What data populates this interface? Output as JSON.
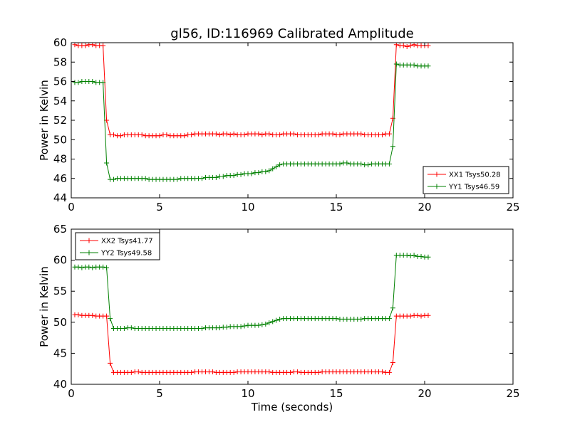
{
  "figure": {
    "title": "gl56, ID:116969 Calibrated Amplitude"
  },
  "chart_data": [
    {
      "type": "line",
      "title": "gl56, ID:116969 Calibrated Amplitude",
      "xlabel": "",
      "ylabel": "Power in Kelvin",
      "xlim": [
        0,
        25
      ],
      "ylim": [
        44,
        60
      ],
      "xticks": [
        0,
        5,
        10,
        15,
        20,
        25
      ],
      "yticks": [
        44,
        46,
        48,
        50,
        52,
        54,
        56,
        58,
        60
      ],
      "legend_position": "lower-right",
      "grid": false,
      "series": [
        {
          "name": "XX1 Tsys50.28",
          "color": "#ff0000",
          "marker": "plus",
          "x": [
            0.2,
            0.4,
            0.6,
            0.8,
            1.0,
            1.2,
            1.4,
            1.6,
            1.8,
            2.0,
            2.2,
            2.4,
            2.6,
            2.8,
            3.0,
            3.2,
            3.4,
            3.6,
            3.8,
            4.0,
            4.2,
            4.4,
            4.6,
            4.8,
            5.0,
            5.2,
            5.4,
            5.6,
            5.8,
            6.0,
            6.2,
            6.4,
            6.6,
            6.8,
            7.0,
            7.2,
            7.4,
            7.6,
            7.8,
            8.0,
            8.2,
            8.4,
            8.6,
            8.8,
            9.0,
            9.2,
            9.4,
            9.6,
            9.8,
            10.0,
            10.2,
            10.4,
            10.6,
            10.8,
            11.0,
            11.2,
            11.4,
            11.6,
            11.8,
            12.0,
            12.2,
            12.4,
            12.6,
            12.8,
            13.0,
            13.2,
            13.4,
            13.6,
            13.8,
            14.0,
            14.2,
            14.4,
            14.6,
            14.8,
            15.0,
            15.2,
            15.4,
            15.6,
            15.8,
            16.0,
            16.2,
            16.4,
            16.6,
            16.8,
            17.0,
            17.2,
            17.4,
            17.6,
            17.8,
            18.0,
            18.2,
            18.4,
            18.6,
            18.8,
            19.0,
            19.2,
            19.4,
            19.6,
            19.8,
            20.0,
            20.2
          ],
          "y": [
            59.8,
            59.7,
            59.7,
            59.7,
            59.8,
            59.8,
            59.7,
            59.7,
            59.7,
            52.0,
            50.5,
            50.5,
            50.4,
            50.4,
            50.5,
            50.5,
            50.5,
            50.5,
            50.5,
            50.5,
            50.4,
            50.4,
            50.4,
            50.4,
            50.4,
            50.5,
            50.5,
            50.4,
            50.4,
            50.4,
            50.4,
            50.4,
            50.5,
            50.5,
            50.6,
            50.6,
            50.6,
            50.6,
            50.6,
            50.6,
            50.6,
            50.5,
            50.6,
            50.6,
            50.5,
            50.6,
            50.5,
            50.5,
            50.5,
            50.6,
            50.6,
            50.6,
            50.6,
            50.5,
            50.6,
            50.6,
            50.5,
            50.5,
            50.5,
            50.6,
            50.6,
            50.6,
            50.6,
            50.5,
            50.5,
            50.5,
            50.5,
            50.5,
            50.5,
            50.5,
            50.6,
            50.6,
            50.6,
            50.6,
            50.5,
            50.5,
            50.6,
            50.6,
            50.6,
            50.6,
            50.6,
            50.6,
            50.5,
            50.5,
            50.5,
            50.5,
            50.5,
            50.5,
            50.6,
            50.6,
            52.2,
            59.8,
            59.7,
            59.7,
            59.6,
            59.7,
            59.8,
            59.7,
            59.7,
            59.7,
            59.7
          ]
        },
        {
          "name": "YY1 Tsys46.59",
          "color": "#008000",
          "marker": "plus",
          "x": [
            0.2,
            0.4,
            0.6,
            0.8,
            1.0,
            1.2,
            1.4,
            1.6,
            1.8,
            2.0,
            2.2,
            2.4,
            2.6,
            2.8,
            3.0,
            3.2,
            3.4,
            3.6,
            3.8,
            4.0,
            4.2,
            4.4,
            4.6,
            4.8,
            5.0,
            5.2,
            5.4,
            5.6,
            5.8,
            6.0,
            6.2,
            6.4,
            6.6,
            6.8,
            7.0,
            7.2,
            7.4,
            7.6,
            7.8,
            8.0,
            8.2,
            8.4,
            8.6,
            8.8,
            9.0,
            9.2,
            9.4,
            9.6,
            9.8,
            10.0,
            10.2,
            10.4,
            10.6,
            10.8,
            11.0,
            11.2,
            11.4,
            11.6,
            11.8,
            12.0,
            12.2,
            12.4,
            12.6,
            12.8,
            13.0,
            13.2,
            13.4,
            13.6,
            13.8,
            14.0,
            14.2,
            14.4,
            14.6,
            14.8,
            15.0,
            15.2,
            15.4,
            15.6,
            15.8,
            16.0,
            16.2,
            16.4,
            16.6,
            16.8,
            17.0,
            17.2,
            17.4,
            17.6,
            17.8,
            18.0,
            18.2,
            18.4,
            18.6,
            18.8,
            19.0,
            19.2,
            19.4,
            19.6,
            19.8,
            20.0,
            20.2
          ],
          "y": [
            55.9,
            55.9,
            56.0,
            56.0,
            56.0,
            56.0,
            55.9,
            55.9,
            55.9,
            47.6,
            45.9,
            45.9,
            46.0,
            46.0,
            46.0,
            46.0,
            46.0,
            46.0,
            46.0,
            46.0,
            46.0,
            45.9,
            45.9,
            45.9,
            45.9,
            45.9,
            45.9,
            45.9,
            45.9,
            45.9,
            46.0,
            46.0,
            46.0,
            46.0,
            46.0,
            46.0,
            46.0,
            46.1,
            46.1,
            46.1,
            46.1,
            46.2,
            46.2,
            46.3,
            46.3,
            46.3,
            46.4,
            46.4,
            46.5,
            46.5,
            46.5,
            46.6,
            46.6,
            46.7,
            46.7,
            46.8,
            47.0,
            47.2,
            47.4,
            47.5,
            47.5,
            47.5,
            47.5,
            47.5,
            47.5,
            47.5,
            47.5,
            47.5,
            47.5,
            47.5,
            47.5,
            47.5,
            47.5,
            47.5,
            47.5,
            47.5,
            47.6,
            47.6,
            47.5,
            47.5,
            47.5,
            47.5,
            47.4,
            47.4,
            47.5,
            47.5,
            47.5,
            47.5,
            47.5,
            47.5,
            49.3,
            57.8,
            57.7,
            57.7,
            57.7,
            57.7,
            57.7,
            57.6,
            57.6,
            57.6,
            57.6
          ]
        }
      ]
    },
    {
      "type": "line",
      "title": "",
      "xlabel": "Time (seconds)",
      "ylabel": "Power in Kelvin",
      "xlim": [
        0,
        25
      ],
      "ylim": [
        40,
        65
      ],
      "xticks": [
        0,
        5,
        10,
        15,
        20,
        25
      ],
      "yticks": [
        40,
        45,
        50,
        55,
        60,
        65
      ],
      "legend_position": "upper-left",
      "grid": false,
      "series": [
        {
          "name": "XX2 Tsys41.77",
          "color": "#ff0000",
          "marker": "plus",
          "x": [
            0.2,
            0.4,
            0.6,
            0.8,
            1.0,
            1.2,
            1.4,
            1.6,
            1.8,
            2.0,
            2.2,
            2.4,
            2.6,
            2.8,
            3.0,
            3.2,
            3.4,
            3.6,
            3.8,
            4.0,
            4.2,
            4.4,
            4.6,
            4.8,
            5.0,
            5.2,
            5.4,
            5.6,
            5.8,
            6.0,
            6.2,
            6.4,
            6.6,
            6.8,
            7.0,
            7.2,
            7.4,
            7.6,
            7.8,
            8.0,
            8.2,
            8.4,
            8.6,
            8.8,
            9.0,
            9.2,
            9.4,
            9.6,
            9.8,
            10.0,
            10.2,
            10.4,
            10.6,
            10.8,
            11.0,
            11.2,
            11.4,
            11.6,
            11.8,
            12.0,
            12.2,
            12.4,
            12.6,
            12.8,
            13.0,
            13.2,
            13.4,
            13.6,
            13.8,
            14.0,
            14.2,
            14.4,
            14.6,
            14.8,
            15.0,
            15.2,
            15.4,
            15.6,
            15.8,
            16.0,
            16.2,
            16.4,
            16.6,
            16.8,
            17.0,
            17.2,
            17.4,
            17.6,
            17.8,
            18.0,
            18.2,
            18.4,
            18.6,
            18.8,
            19.0,
            19.2,
            19.4,
            19.6,
            19.8,
            20.0,
            20.2
          ],
          "y": [
            51.2,
            51.2,
            51.1,
            51.1,
            51.1,
            51.1,
            51.0,
            51.0,
            51.0,
            51.0,
            43.4,
            41.9,
            41.9,
            41.9,
            41.9,
            41.9,
            41.9,
            42.0,
            42.0,
            41.9,
            41.9,
            41.9,
            41.9,
            41.9,
            41.9,
            41.9,
            41.9,
            41.9,
            41.9,
            41.9,
            41.9,
            41.9,
            41.9,
            41.9,
            42.0,
            42.0,
            42.0,
            42.0,
            42.0,
            42.0,
            41.9,
            41.9,
            41.9,
            41.9,
            41.9,
            41.9,
            42.0,
            42.0,
            42.0,
            42.0,
            42.0,
            42.0,
            42.0,
            42.0,
            42.0,
            42.0,
            41.9,
            41.9,
            41.9,
            41.9,
            41.9,
            41.9,
            42.0,
            42.0,
            41.9,
            41.9,
            41.9,
            41.9,
            41.9,
            41.9,
            42.0,
            42.0,
            42.0,
            42.0,
            42.0,
            42.0,
            42.0,
            42.0,
            42.0,
            42.0,
            42.0,
            42.0,
            42.0,
            42.0,
            42.0,
            42.0,
            42.0,
            42.0,
            41.9,
            41.9,
            43.5,
            51.0,
            51.0,
            51.0,
            51.0,
            51.0,
            51.1,
            51.1,
            51.0,
            51.1,
            51.1
          ]
        },
        {
          "name": "YY2 Tsys49.58",
          "color": "#008000",
          "marker": "plus",
          "x": [
            0.2,
            0.4,
            0.6,
            0.8,
            1.0,
            1.2,
            1.4,
            1.6,
            1.8,
            2.0,
            2.2,
            2.4,
            2.6,
            2.8,
            3.0,
            3.2,
            3.4,
            3.6,
            3.8,
            4.0,
            4.2,
            4.4,
            4.6,
            4.8,
            5.0,
            5.2,
            5.4,
            5.6,
            5.8,
            6.0,
            6.2,
            6.4,
            6.6,
            6.8,
            7.0,
            7.2,
            7.4,
            7.6,
            7.8,
            8.0,
            8.2,
            8.4,
            8.6,
            8.8,
            9.0,
            9.2,
            9.4,
            9.6,
            9.8,
            10.0,
            10.2,
            10.4,
            10.6,
            10.8,
            11.0,
            11.2,
            11.4,
            11.6,
            11.8,
            12.0,
            12.2,
            12.4,
            12.6,
            12.8,
            13.0,
            13.2,
            13.4,
            13.6,
            13.8,
            14.0,
            14.2,
            14.4,
            14.6,
            14.8,
            15.0,
            15.2,
            15.4,
            15.6,
            15.8,
            16.0,
            16.2,
            16.4,
            16.6,
            16.8,
            17.0,
            17.2,
            17.4,
            17.6,
            17.8,
            18.0,
            18.2,
            18.4,
            18.6,
            18.8,
            19.0,
            19.2,
            19.4,
            19.6,
            19.8,
            20.0,
            20.2
          ],
          "y": [
            58.9,
            58.9,
            58.8,
            58.9,
            58.9,
            58.8,
            58.9,
            58.9,
            58.9,
            58.8,
            50.6,
            49.0,
            49.0,
            49.0,
            49.0,
            49.1,
            49.1,
            49.0,
            49.0,
            49.0,
            49.0,
            49.0,
            49.0,
            49.0,
            49.0,
            49.0,
            49.0,
            49.0,
            49.0,
            49.0,
            49.0,
            49.0,
            49.0,
            49.0,
            49.0,
            49.0,
            49.0,
            49.1,
            49.1,
            49.1,
            49.1,
            49.1,
            49.2,
            49.2,
            49.3,
            49.3,
            49.3,
            49.3,
            49.4,
            49.5,
            49.5,
            49.5,
            49.5,
            49.6,
            49.7,
            49.9,
            50.1,
            50.3,
            50.5,
            50.6,
            50.6,
            50.6,
            50.6,
            50.6,
            50.6,
            50.6,
            50.6,
            50.6,
            50.6,
            50.6,
            50.6,
            50.6,
            50.6,
            50.6,
            50.6,
            50.5,
            50.5,
            50.5,
            50.5,
            50.5,
            50.5,
            50.5,
            50.6,
            50.6,
            50.6,
            50.6,
            50.6,
            50.6,
            50.6,
            50.6,
            52.3,
            60.8,
            60.8,
            60.8,
            60.8,
            60.7,
            60.8,
            60.6,
            60.6,
            60.5,
            60.5
          ]
        }
      ]
    }
  ]
}
